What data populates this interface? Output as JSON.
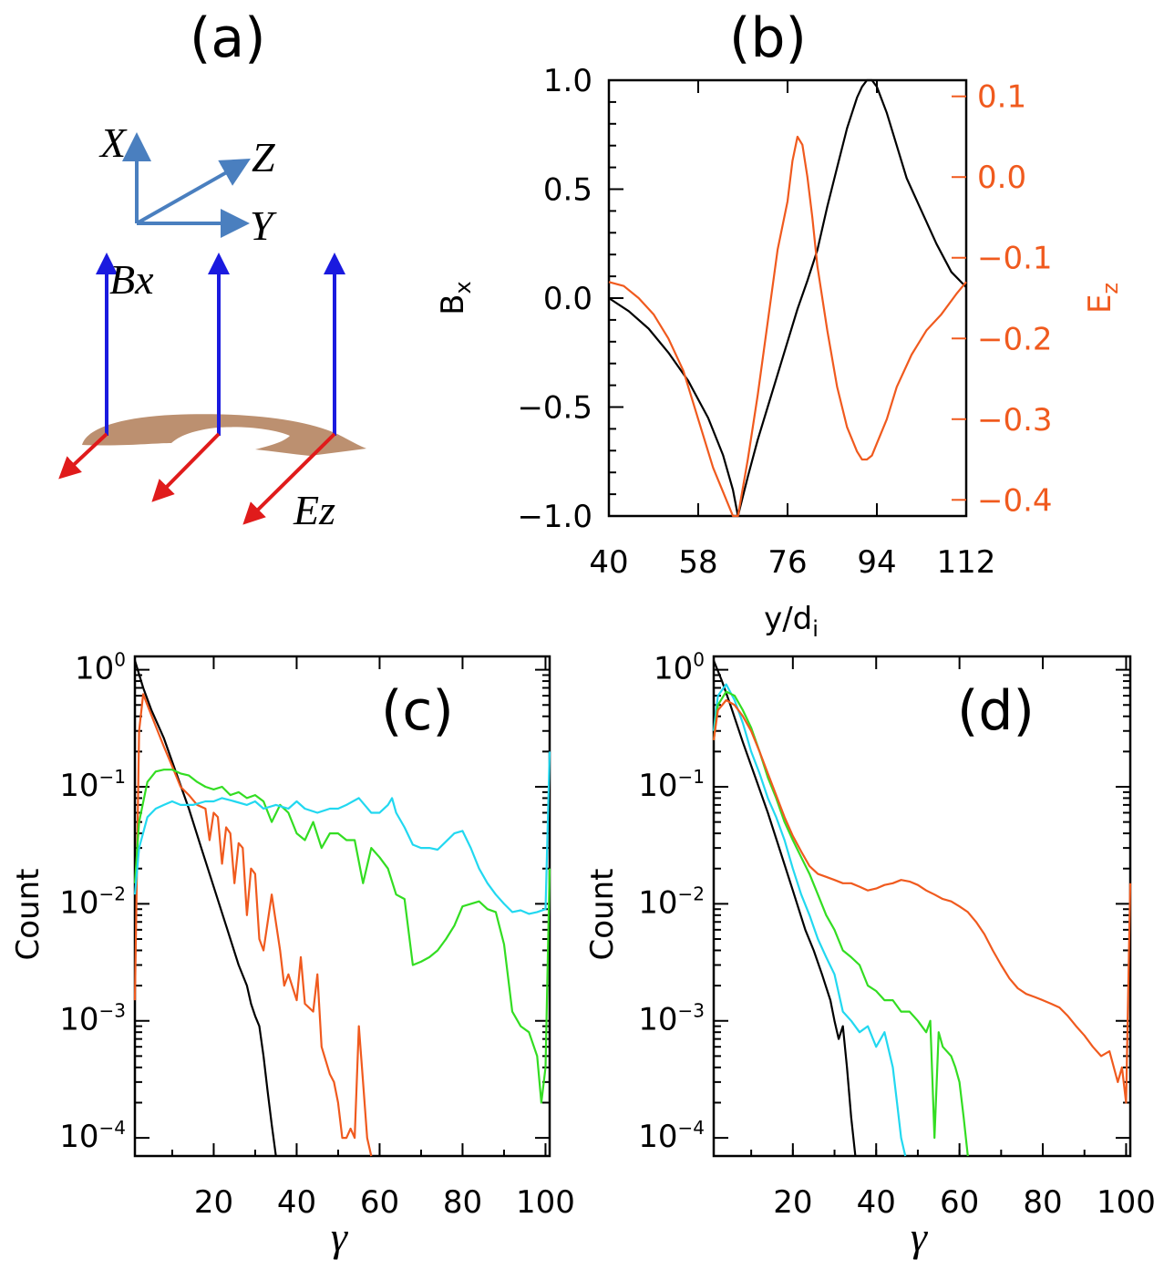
{
  "panel_a": {
    "label": "(a)",
    "axes": {
      "x": "X",
      "y": "Y",
      "z": "Z"
    },
    "field_b": "Bx",
    "field_e": "Ez",
    "colors": {
      "axes": "#4a7fbf",
      "b_arrows": "#1a1adf",
      "e_arrows": "#e01b1b",
      "sheet": "#b58460"
    }
  },
  "chart_data": [
    {
      "type": "line",
      "panel": "(b)",
      "xlabel": "y/d",
      "xlabel_sub": "i",
      "ylabel": "B",
      "ylabel_sub": "x",
      "y2label": "E",
      "y2label_sub": "z",
      "xlim": [
        40,
        112
      ],
      "ylim": [
        -1.0,
        1.0
      ],
      "y2lim": [
        -0.42,
        0.12
      ],
      "xticks": [
        "40",
        "58",
        "76",
        "94",
        "112"
      ],
      "yticks": [
        "1.0",
        "0.5",
        "0.0",
        "−0.5",
        "−1.0"
      ],
      "y2ticks": [
        "0.1",
        "0.0",
        "−0.1",
        "−0.2",
        "−0.3",
        "−0.4"
      ],
      "series": [
        {
          "name": "B_x",
          "axis": "left",
          "color": "#000000",
          "x": [
            40,
            44,
            48,
            52,
            56,
            60,
            63,
            65,
            66,
            68,
            70,
            72,
            74,
            76,
            78,
            80,
            82,
            84,
            86,
            88,
            90,
            91,
            92,
            93,
            94,
            96,
            98,
            100,
            103,
            106,
            109,
            112
          ],
          "y": [
            0.0,
            -0.06,
            -0.14,
            -0.25,
            -0.38,
            -0.55,
            -0.72,
            -0.88,
            -1.0,
            -0.82,
            -0.65,
            -0.5,
            -0.35,
            -0.2,
            -0.05,
            0.08,
            0.22,
            0.42,
            0.6,
            0.78,
            0.92,
            0.97,
            1.0,
            1.0,
            0.97,
            0.85,
            0.7,
            0.55,
            0.4,
            0.25,
            0.12,
            0.05
          ]
        },
        {
          "name": "E_z",
          "axis": "right",
          "color": "#f05a1e",
          "x": [
            40,
            43,
            46,
            49,
            52,
            55,
            58,
            61,
            63,
            65,
            66,
            68,
            70,
            72,
            74,
            76,
            77,
            78,
            79,
            80,
            81,
            82,
            84,
            86,
            88,
            90,
            91,
            92,
            93,
            94,
            96,
            98,
            101,
            104,
            107,
            110,
            112
          ],
          "y": [
            -0.13,
            -0.135,
            -0.15,
            -0.17,
            -0.2,
            -0.24,
            -0.3,
            -0.36,
            -0.39,
            -0.42,
            -0.42,
            -0.35,
            -0.27,
            -0.18,
            -0.09,
            -0.03,
            0.02,
            0.05,
            0.04,
            0.0,
            -0.05,
            -0.11,
            -0.19,
            -0.26,
            -0.31,
            -0.34,
            -0.35,
            -0.35,
            -0.345,
            -0.33,
            -0.3,
            -0.26,
            -0.22,
            -0.19,
            -0.17,
            -0.145,
            -0.13
          ]
        }
      ]
    },
    {
      "type": "line",
      "panel": "(c)",
      "xlabel": "γ",
      "ylabel": "Count",
      "yscale": "log",
      "xlim": [
        1,
        101
      ],
      "ylim": [
        7e-05,
        1.3
      ],
      "xticks": [
        "20",
        "40",
        "60",
        "80",
        "100"
      ],
      "yticks": [
        {
          "base": "10",
          "exp": "0"
        },
        {
          "base": "10",
          "exp": "−1"
        },
        {
          "base": "10",
          "exp": "−2"
        },
        {
          "base": "10",
          "exp": "−3"
        },
        {
          "base": "10",
          "exp": "−4"
        }
      ],
      "series": [
        {
          "name": "black",
          "color": "#000000",
          "x": [
            1,
            3,
            5,
            8,
            11,
            14,
            17,
            20,
            23,
            26,
            28,
            29,
            30,
            31,
            32,
            33,
            34,
            35
          ],
          "y": [
            1.2,
            0.7,
            0.45,
            0.26,
            0.13,
            0.065,
            0.03,
            0.014,
            0.0065,
            0.003,
            0.002,
            0.0014,
            0.0011,
            0.0009,
            0.0005,
            0.00025,
            0.00013,
            7e-05
          ]
        },
        {
          "name": "orange",
          "color": "#f05a1e",
          "x": [
            1,
            2,
            3,
            4,
            6,
            8,
            10,
            12,
            14,
            16,
            18,
            19,
            20,
            21,
            22,
            23,
            24,
            25,
            26,
            27,
            28,
            29,
            30,
            31,
            32,
            34,
            36,
            37,
            38,
            40,
            41,
            42,
            44,
            45,
            46,
            48,
            49,
            50,
            51,
            52,
            53,
            54,
            55,
            56,
            57,
            58
          ],
          "y": [
            0.0015,
            0.3,
            0.62,
            0.5,
            0.33,
            0.22,
            0.15,
            0.1,
            0.085,
            0.07,
            0.065,
            0.035,
            0.06,
            0.055,
            0.022,
            0.045,
            0.04,
            0.015,
            0.033,
            0.03,
            0.008,
            0.02,
            0.018,
            0.005,
            0.004,
            0.012,
            0.004,
            0.002,
            0.0025,
            0.0015,
            0.0035,
            0.0014,
            0.0012,
            0.0025,
            0.0006,
            0.00035,
            0.0003,
            0.0002,
            0.0001,
            0.0001,
            0.00012,
            0.0001,
            0.0009,
            0.0003,
            0.0001,
            7e-05
          ]
        },
        {
          "name": "green",
          "color": "#33dd22",
          "x": [
            1,
            2,
            4,
            6,
            8,
            10,
            12,
            14,
            16,
            18,
            20,
            22,
            24,
            26,
            28,
            30,
            32,
            34,
            36,
            38,
            40,
            42,
            44,
            46,
            48,
            50,
            52,
            54,
            56,
            58,
            60,
            62,
            64,
            66,
            68,
            70,
            72,
            74,
            76,
            78,
            80,
            82,
            84,
            86,
            88,
            90,
            92,
            94,
            96,
            98,
            99,
            100,
            101
          ],
          "y": [
            0.015,
            0.05,
            0.11,
            0.135,
            0.14,
            0.14,
            0.13,
            0.125,
            0.11,
            0.1,
            0.095,
            0.1,
            0.085,
            0.09,
            0.08,
            0.085,
            0.075,
            0.05,
            0.07,
            0.06,
            0.04,
            0.035,
            0.05,
            0.03,
            0.04,
            0.04,
            0.035,
            0.035,
            0.015,
            0.03,
            0.025,
            0.02,
            0.012,
            0.011,
            0.003,
            0.0032,
            0.0035,
            0.004,
            0.005,
            0.0065,
            0.0095,
            0.01,
            0.0105,
            0.009,
            0.0085,
            0.0045,
            0.0012,
            0.0009,
            0.0008,
            0.0005,
            0.0002,
            0.0004,
            0.02
          ]
        },
        {
          "name": "cyan",
          "color": "#22d8f0",
          "x": [
            1,
            2,
            4,
            6,
            8,
            10,
            12,
            15,
            18,
            20,
            22,
            25,
            28,
            30,
            32,
            35,
            38,
            40,
            42,
            45,
            48,
            50,
            52,
            55,
            58,
            60,
            62,
            63,
            64,
            66,
            68,
            70,
            72,
            74,
            76,
            78,
            80,
            82,
            84,
            86,
            88,
            90,
            92,
            94,
            96,
            98,
            100,
            101
          ],
          "y": [
            0.012,
            0.03,
            0.055,
            0.065,
            0.07,
            0.075,
            0.07,
            0.07,
            0.075,
            0.075,
            0.08,
            0.075,
            0.07,
            0.075,
            0.065,
            0.07,
            0.065,
            0.075,
            0.065,
            0.06,
            0.065,
            0.065,
            0.07,
            0.08,
            0.06,
            0.06,
            0.07,
            0.08,
            0.06,
            0.045,
            0.032,
            0.03,
            0.03,
            0.029,
            0.034,
            0.04,
            0.042,
            0.03,
            0.02,
            0.015,
            0.012,
            0.01,
            0.0085,
            0.0088,
            0.0082,
            0.0085,
            0.009,
            0.2
          ]
        }
      ]
    },
    {
      "type": "line",
      "panel": "(d)",
      "xlabel": "γ",
      "ylabel": "Count",
      "yscale": "log",
      "xlim": [
        1,
        101
      ],
      "ylim": [
        7e-05,
        1.3
      ],
      "xticks": [
        "20",
        "40",
        "60",
        "80",
        "100"
      ],
      "yticks": [
        {
          "base": "10",
          "exp": "0"
        },
        {
          "base": "10",
          "exp": "−1"
        },
        {
          "base": "10",
          "exp": "−2"
        },
        {
          "base": "10",
          "exp": "−3"
        },
        {
          "base": "10",
          "exp": "−4"
        }
      ],
      "series": [
        {
          "name": "black",
          "color": "#000000",
          "x": [
            1,
            3,
            5,
            8,
            11,
            14,
            17,
            20,
            23,
            25,
            27,
            29,
            30,
            31,
            32,
            33,
            34,
            35
          ],
          "y": [
            1.2,
            0.8,
            0.5,
            0.24,
            0.12,
            0.06,
            0.028,
            0.013,
            0.006,
            0.004,
            0.0025,
            0.0015,
            0.001,
            0.0007,
            0.0009,
            0.0004,
            0.00015,
            7e-05
          ]
        },
        {
          "name": "cyan",
          "color": "#22d8f0",
          "x": [
            1,
            2,
            4,
            6,
            8,
            10,
            12,
            14,
            16,
            18,
            20,
            22,
            24,
            26,
            28,
            30,
            32,
            34,
            36,
            38,
            40,
            42,
            44,
            45,
            46,
            47
          ],
          "y": [
            0.3,
            0.6,
            0.75,
            0.55,
            0.35,
            0.2,
            0.13,
            0.08,
            0.055,
            0.035,
            0.02,
            0.012,
            0.008,
            0.005,
            0.0035,
            0.0025,
            0.0012,
            0.001,
            0.0008,
            0.0009,
            0.0006,
            0.0008,
            0.0004,
            0.0002,
            0.0001,
            7e-05
          ]
        },
        {
          "name": "green",
          "color": "#33dd22",
          "x": [
            1,
            2,
            4,
            6,
            8,
            10,
            12,
            14,
            16,
            18,
            20,
            22,
            24,
            26,
            28,
            30,
            32,
            34,
            36,
            38,
            40,
            42,
            44,
            46,
            48,
            50,
            52,
            53,
            54,
            55,
            56,
            58,
            59,
            60,
            61,
            62
          ],
          "y": [
            0.25,
            0.5,
            0.65,
            0.6,
            0.45,
            0.32,
            0.2,
            0.12,
            0.08,
            0.05,
            0.035,
            0.025,
            0.018,
            0.012,
            0.008,
            0.006,
            0.004,
            0.0035,
            0.003,
            0.002,
            0.0018,
            0.0015,
            0.0015,
            0.0012,
            0.0012,
            0.001,
            0.0008,
            0.001,
            0.0001,
            0.0008,
            0.0006,
            0.0005,
            0.0004,
            0.0003,
            0.00015,
            7e-05
          ]
        },
        {
          "name": "orange",
          "color": "#f05a1e",
          "x": [
            1,
            2,
            4,
            6,
            8,
            10,
            12,
            14,
            16,
            18,
            20,
            22,
            24,
            26,
            28,
            30,
            32,
            34,
            36,
            38,
            40,
            42,
            44,
            46,
            48,
            50,
            52,
            54,
            56,
            58,
            60,
            62,
            64,
            66,
            68,
            70,
            72,
            74,
            76,
            78,
            80,
            82,
            84,
            86,
            88,
            90,
            92,
            94,
            96,
            98,
            99,
            100,
            101
          ],
          "y": [
            0.25,
            0.45,
            0.55,
            0.5,
            0.4,
            0.3,
            0.2,
            0.13,
            0.085,
            0.055,
            0.038,
            0.028,
            0.021,
            0.018,
            0.017,
            0.016,
            0.015,
            0.015,
            0.014,
            0.013,
            0.0135,
            0.0145,
            0.015,
            0.016,
            0.0155,
            0.0145,
            0.013,
            0.012,
            0.011,
            0.0105,
            0.0095,
            0.0085,
            0.007,
            0.0055,
            0.004,
            0.003,
            0.0023,
            0.0019,
            0.0017,
            0.0016,
            0.0015,
            0.0014,
            0.0013,
            0.0011,
            0.0009,
            0.00075,
            0.0006,
            0.0005,
            0.00055,
            0.0003,
            0.0004,
            0.0002,
            0.015
          ]
        }
      ]
    }
  ]
}
